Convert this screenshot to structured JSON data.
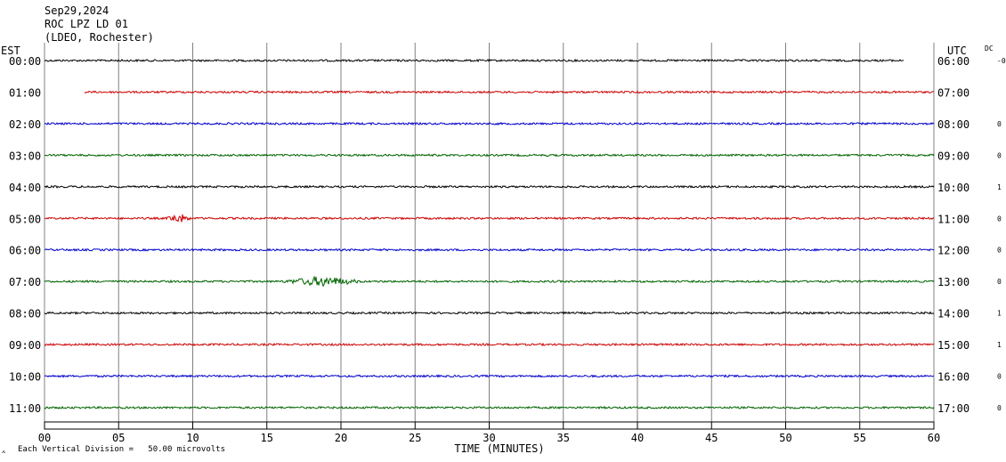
{
  "header": {
    "date": "Sep29,2024",
    "station": "ROC LPZ LD 01",
    "network": "(LDEO, Rochester)"
  },
  "labels": {
    "left_tz": "EST",
    "right_tz": "UTC",
    "dc": "DC",
    "xlabel": "TIME (MINUTES)",
    "scale_note": "Each Vertical Division =   50.00 microvolts"
  },
  "colors": {
    "cycle": [
      "#000000",
      "#cc0000",
      "#0000cc",
      "#006400"
    ],
    "grid": "#808080"
  },
  "chart_data": {
    "type": "line",
    "xlim": [
      0,
      60
    ],
    "x_ticks": [
      "00",
      "05",
      "10",
      "15",
      "20",
      "25",
      "30",
      "35",
      "40",
      "45",
      "50",
      "55",
      "60"
    ],
    "rows": [
      {
        "est": "00:00",
        "utc": "06:00",
        "dc": "-0",
        "start": 0,
        "end": 58
      },
      {
        "est": "01:00",
        "utc": "07:00",
        "dc": "",
        "start": 2.7,
        "end": 60
      },
      {
        "est": "02:00",
        "utc": "08:00",
        "dc": "0",
        "start": 0,
        "end": 60
      },
      {
        "est": "03:00",
        "utc": "09:00",
        "dc": "0",
        "start": 0,
        "end": 60
      },
      {
        "est": "04:00",
        "utc": "10:00",
        "dc": "1",
        "start": 0,
        "end": 60
      },
      {
        "est": "05:00",
        "utc": "11:00",
        "dc": "0",
        "start": 0,
        "end": 60
      },
      {
        "est": "06:00",
        "utc": "12:00",
        "dc": "0",
        "start": 0,
        "end": 60
      },
      {
        "est": "07:00",
        "utc": "13:00",
        "dc": "0",
        "start": 0,
        "end": 60
      },
      {
        "est": "08:00",
        "utc": "14:00",
        "dc": "1",
        "start": 0,
        "end": 60
      },
      {
        "est": "09:00",
        "utc": "15:00",
        "dc": "1",
        "start": 0,
        "end": 60
      },
      {
        "est": "10:00",
        "utc": "16:00",
        "dc": "0",
        "start": 0,
        "end": 60
      },
      {
        "est": "11:00",
        "utc": "17:00",
        "dc": "0",
        "start": 0,
        "end": 60
      }
    ],
    "events": [
      {
        "row": 5,
        "start": 8.2,
        "end": 9.9
      },
      {
        "row": 7,
        "start": 16.0,
        "end": 21.5
      }
    ]
  }
}
